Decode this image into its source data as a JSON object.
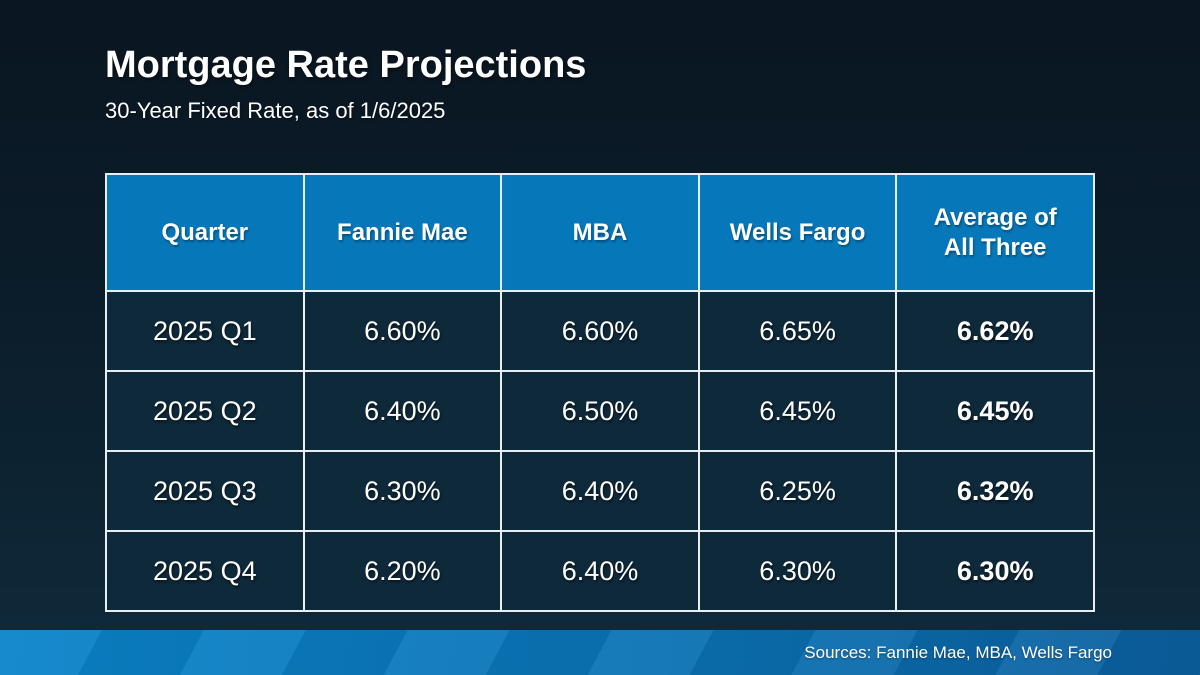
{
  "slide": {
    "title": "Mortgage Rate Projections",
    "subtitle": "30-Year Fixed Rate, as of 1/6/2025",
    "footer_source": "Sources: Fannie Mae, MBA, Wells Fargo"
  },
  "table": {
    "columns": [
      "Quarter",
      "Fannie Mae",
      "MBA",
      "Wells Fargo",
      "Average of All Three"
    ],
    "rows": [
      [
        "2025 Q1",
        "6.60%",
        "6.60%",
        "6.65%",
        "6.62%"
      ],
      [
        "2025 Q2",
        "6.40%",
        "6.50%",
        "6.45%",
        "6.45%"
      ],
      [
        "2025 Q3",
        "6.30%",
        "6.40%",
        "6.25%",
        "6.32%"
      ],
      [
        "2025 Q4",
        "6.20%",
        "6.40%",
        "6.30%",
        "6.30%"
      ]
    ]
  },
  "colors": {
    "header_blue": "#0678ba",
    "cell_navy": "#0e293a",
    "table_border": "#e9eef2",
    "footer_gradient_left": "#0a84ca",
    "footer_gradient_right": "#0b5f9e",
    "background_top": "#0a1621",
    "background_bottom": "#0f2b3c"
  },
  "chart_data": {
    "type": "table",
    "title": "Mortgage Rate Projections",
    "subtitle": "30-Year Fixed Rate, as of 1/6/2025",
    "columns": [
      "Quarter",
      "Fannie Mae",
      "MBA",
      "Wells Fargo",
      "Average of All Three"
    ],
    "rows": [
      {
        "quarter": "2025 Q1",
        "fannie_mae": 6.6,
        "mba": 6.6,
        "wells_fargo": 6.65,
        "average_of_all_three": 6.62
      },
      {
        "quarter": "2025 Q2",
        "fannie_mae": 6.4,
        "mba": 6.5,
        "wells_fargo": 6.45,
        "average_of_all_three": 6.45
      },
      {
        "quarter": "2025 Q3",
        "fannie_mae": 6.3,
        "mba": 6.4,
        "wells_fargo": 6.25,
        "average_of_all_three": 6.32
      },
      {
        "quarter": "2025 Q4",
        "fannie_mae": 6.2,
        "mba": 6.4,
        "wells_fargo": 6.3,
        "average_of_all_three": 6.3
      }
    ],
    "value_unit": "%",
    "source_note": "Sources: Fannie Mae, MBA, Wells Fargo"
  }
}
